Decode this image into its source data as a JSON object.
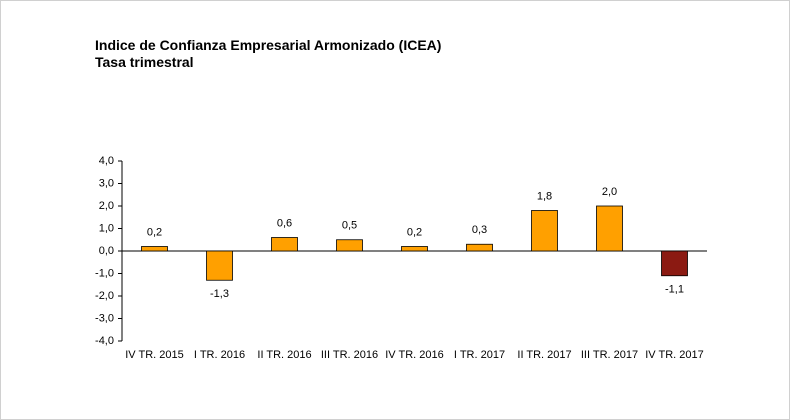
{
  "chart_data": {
    "type": "bar",
    "title": "Indice de Confianza Empresarial Armonizado (ICEA)",
    "subtitle": "Tasa trimestral",
    "categories": [
      "IV TR. 2015",
      "I TR. 2016",
      "II TR. 2016",
      "III TR. 2016",
      "IV TR. 2016",
      "I TR. 2017",
      "II TR. 2017",
      "III TR. 2017",
      "IV TR. 2017"
    ],
    "values": [
      0.2,
      -1.3,
      0.6,
      0.5,
      0.2,
      0.3,
      1.8,
      2.0,
      -1.1
    ],
    "value_labels": [
      "0,2",
      "-1,3",
      "0,6",
      "0,5",
      "0,2",
      "0,3",
      "1,8",
      "2,0",
      "-1,1"
    ],
    "colors": [
      "#ffa000",
      "#ffa000",
      "#ffa000",
      "#ffa000",
      "#ffa000",
      "#ffa000",
      "#ffa000",
      "#ffa000",
      "#8b1a12"
    ],
    "ylim": [
      -4.0,
      4.0
    ],
    "yticks": [
      {
        "value": -4.0,
        "label": "-4,0"
      },
      {
        "value": -3.0,
        "label": "-3,0"
      },
      {
        "value": -2.0,
        "label": "-2,0"
      },
      {
        "value": -1.0,
        "label": "-1,0"
      },
      {
        "value": 0.0,
        "label": "0,0"
      },
      {
        "value": 1.0,
        "label": "1,0"
      },
      {
        "value": 2.0,
        "label": "2,0"
      },
      {
        "value": 3.0,
        "label": "3,0"
      },
      {
        "value": 4.0,
        "label": "4,0"
      }
    ],
    "grid": false
  }
}
